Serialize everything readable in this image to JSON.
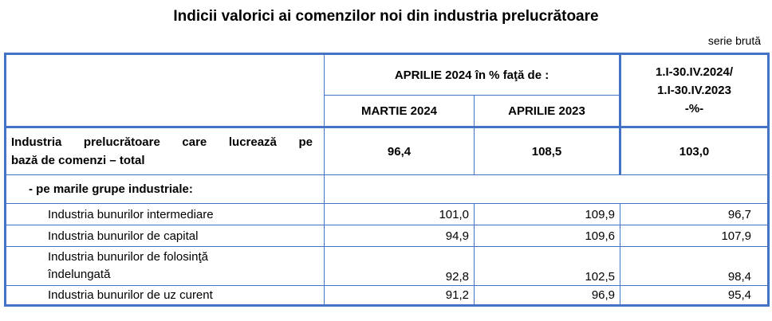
{
  "title": "Indicii valorici ai comenzilor noi din industria prelucrătoare",
  "note": "serie brută",
  "header": {
    "group_label": "APRILIE 2024  în % faţă de :",
    "col1": "MARTIE 2024",
    "col2": "APRILIE  2023",
    "col3_line1": "1.I-30.IV.2024/",
    "col3_line2": "1.I-30.IV.2023",
    "col3_line3": "-%-"
  },
  "total": {
    "label_line1": "Industria prelucrătoare care lucrează pe",
    "label_line2": "bază de comenzi – total",
    "v1": "96,4",
    "v2": "108,5",
    "v3": "103,0"
  },
  "groups_label": "- pe marile grupe industriale:",
  "rows": [
    {
      "label": "Industria bunurilor   intermediare",
      "v1": "101,0",
      "v2": "109,9",
      "v3": "96,7"
    },
    {
      "label": "Industria bunurilor de capital",
      "v1": "94,9",
      "v2": "109,6",
      "v3": "107,9"
    },
    {
      "label_line1": "Industria bunurilor de folosinţă",
      "label_line2": "îndelungată",
      "v1": "92,8",
      "v2": "102,5",
      "v3": "98,4"
    },
    {
      "label": "Industria bunurilor de uz curent",
      "v1": "91,2",
      "v2": "96,9",
      "v3": "95,4"
    }
  ]
}
